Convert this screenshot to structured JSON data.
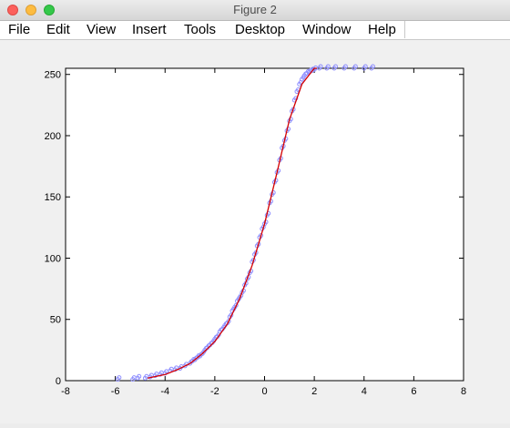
{
  "window": {
    "title": "Figure 2"
  },
  "menubar": {
    "items": [
      "File",
      "Edit",
      "View",
      "Insert",
      "Tools",
      "Desktop",
      "Window",
      "Help"
    ],
    "dock_icon": "dock-arrow-icon"
  },
  "colors": {
    "curve": "#d40000",
    "points": "#8f8fff",
    "axes_bg": "#ffffff",
    "figure_bg": "#f0f0f0"
  },
  "chart_data": {
    "type": "scatter",
    "title": "",
    "xlabel": "",
    "ylabel": "",
    "xlim": [
      -8,
      8
    ],
    "ylim": [
      0,
      255
    ],
    "xticks": [
      -8,
      -6,
      -4,
      -2,
      0,
      2,
      4,
      6,
      8
    ],
    "yticks": [
      0,
      50,
      100,
      150,
      200,
      250
    ],
    "grid": false,
    "legend": "none",
    "series": [
      {
        "type": "scatter",
        "marker": "circle",
        "x": [
          -5.9,
          -5.3,
          -5.1,
          -4.8,
          -4.6,
          -4.4,
          -4.2,
          -4.0,
          -3.8,
          -3.6,
          -3.4,
          -3.2,
          -3.0,
          -2.9,
          -2.8,
          -2.7,
          -2.6,
          -2.5,
          -2.4,
          -2.3,
          -2.2,
          -2.1,
          -2.0,
          -1.9,
          -1.8,
          -1.7,
          -1.6,
          -1.5,
          -1.4,
          -1.3,
          -1.2,
          -1.1,
          -1.0,
          -0.9,
          -0.8,
          -0.7,
          -0.6,
          -0.5,
          -0.4,
          -0.3,
          -0.2,
          -0.1,
          0.0,
          0.1,
          0.2,
          0.3,
          0.4,
          0.5,
          0.6,
          0.7,
          0.8,
          0.9,
          1.0,
          1.1,
          1.2,
          1.3,
          1.4,
          1.5,
          1.6,
          1.7,
          1.8,
          1.9,
          2.0,
          2.2,
          2.5,
          2.8,
          3.2,
          3.6,
          4.0,
          4.3
        ],
        "y": [
          1,
          1,
          2,
          2,
          3,
          4,
          5,
          6,
          8,
          9,
          10,
          12,
          14,
          16,
          17,
          19,
          20,
          22,
          25,
          27,
          29,
          31,
          34,
          36,
          40,
          42,
          45,
          47,
          52,
          57,
          60,
          65,
          68,
          72,
          78,
          83,
          88,
          97,
          103,
          110,
          117,
          124,
          128,
          135,
          145,
          152,
          162,
          170,
          180,
          190,
          196,
          204,
          212,
          220,
          229,
          236,
          242,
          246,
          249,
          251,
          252,
          253,
          254,
          255,
          255,
          255,
          255,
          255,
          255,
          255
        ]
      },
      {
        "type": "line",
        "x": [
          -4.7,
          -4.0,
          -3.5,
          -3.0,
          -2.5,
          -2.0,
          -1.5,
          -1.0,
          -0.5,
          0.0,
          0.5,
          1.0,
          1.5,
          2.0,
          2.1
        ],
        "y": [
          2,
          5,
          9,
          14,
          22,
          32,
          46,
          67,
          94,
          128,
          170,
          213,
          242,
          255,
          255
        ]
      }
    ]
  }
}
